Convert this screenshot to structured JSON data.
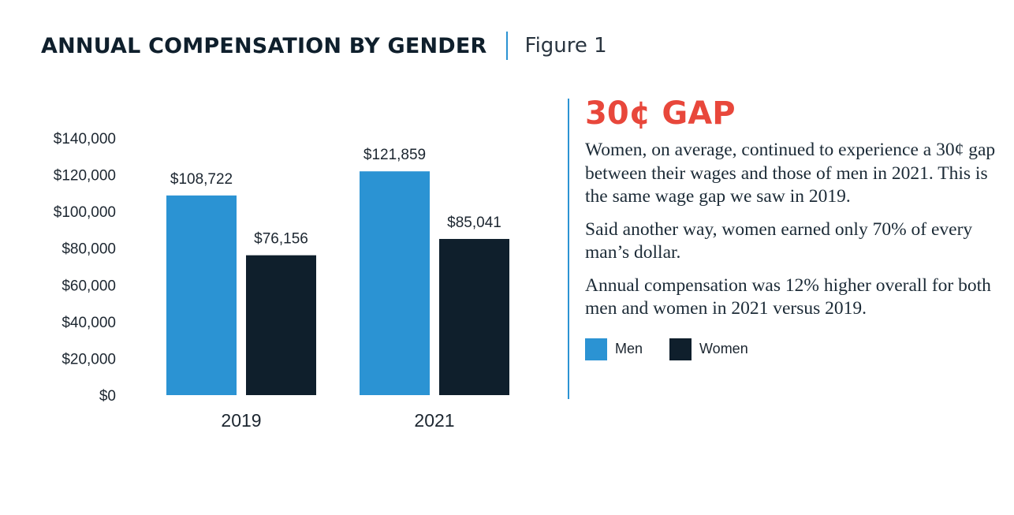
{
  "header": {
    "title": "ANNUAL COMPENSATION BY GENDER",
    "figure_label": "Figure 1"
  },
  "chart_data": {
    "type": "bar",
    "categories": [
      "2019",
      "2021"
    ],
    "series": [
      {
        "name": "Men",
        "color": "#2b93d3",
        "values": [
          108722,
          121859
        ],
        "labels": [
          "$108,722",
          "$121,859"
        ]
      },
      {
        "name": "Women",
        "color": "#0f1f2c",
        "values": [
          76156,
          85041
        ],
        "labels": [
          "$76,156",
          "$85,041"
        ]
      }
    ],
    "yticks": [
      0,
      20000,
      40000,
      60000,
      80000,
      100000,
      120000,
      140000
    ],
    "ytick_labels": [
      "$0",
      "$20,000",
      "$40,000",
      "$60,000",
      "$80,000",
      "$100,000",
      "$120,000",
      "$140,000"
    ],
    "ylim": [
      0,
      140000
    ],
    "grid": false,
    "legend": "right panel, below text"
  },
  "side_panel": {
    "headline": "30¢ GAP",
    "paragraphs": [
      "Women, on average, continued to experience a 30¢ gap between their wages and those of men in 2021. This is the same wage gap we saw in 2019.",
      "Said another way, women earned only 70% of every man’s dollar.",
      "Annual compensation was 12% higher overall for both men and women in 2021 versus 2019."
    ],
    "legend": [
      {
        "label": "Men",
        "color": "#2b93d3"
      },
      {
        "label": "Women",
        "color": "#0f1f2c"
      }
    ]
  }
}
